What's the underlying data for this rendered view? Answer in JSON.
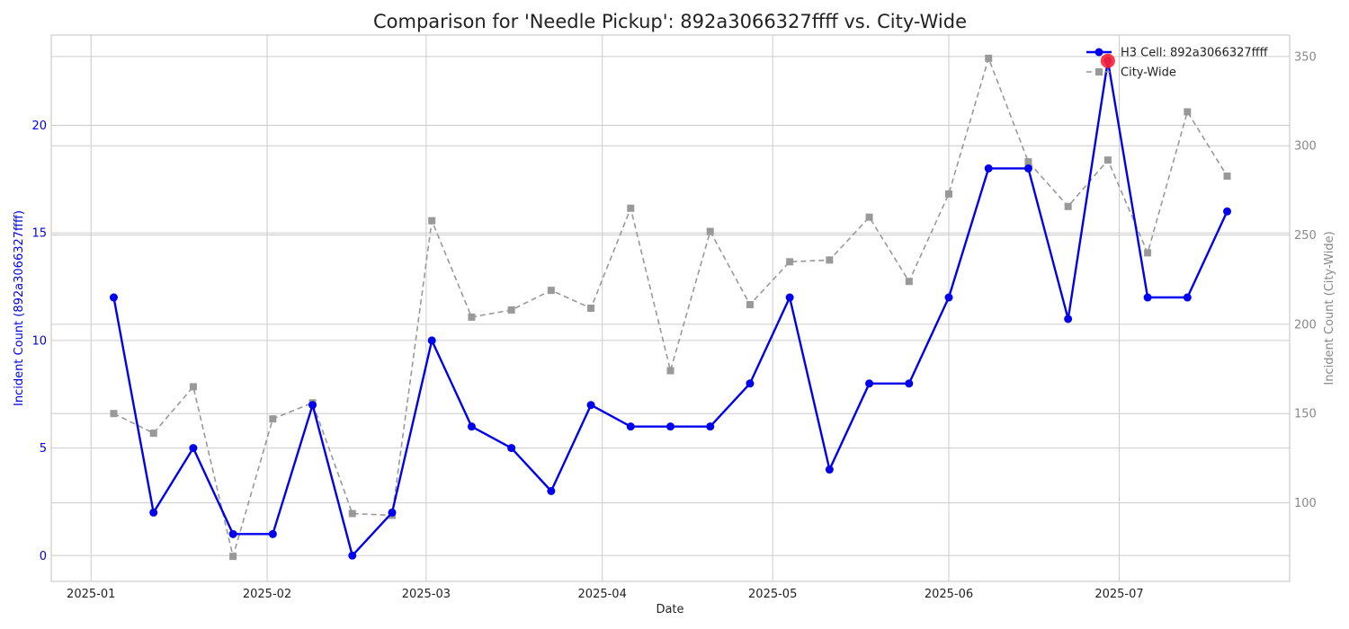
{
  "chart_data": {
    "type": "line",
    "title": "Comparison for 'Needle Pickup': 892a3066327ffff vs. City-Wide",
    "xlabel": "Date",
    "ylabel_left": "Incident Count (892a3066327ffff)",
    "ylabel_right": "Incident Count (City-Wide)",
    "x_ticks": [
      "2025-01",
      "2025-02",
      "2025-03",
      "2025-04",
      "2025-05",
      "2025-06",
      "2025-07"
    ],
    "x": [
      "2025-01-05",
      "2025-01-12",
      "2025-01-19",
      "2025-01-26",
      "2025-02-02",
      "2025-02-09",
      "2025-02-16",
      "2025-02-23",
      "2025-03-02",
      "2025-03-09",
      "2025-03-16",
      "2025-03-23",
      "2025-03-30",
      "2025-04-06",
      "2025-04-13",
      "2025-04-20",
      "2025-04-27",
      "2025-05-04",
      "2025-05-11",
      "2025-05-18",
      "2025-05-25",
      "2025-06-01",
      "2025-06-08",
      "2025-06-15",
      "2025-06-22",
      "2025-06-29",
      "2025-07-06",
      "2025-07-13",
      "2025-07-20"
    ],
    "xlim": [
      "2024-12-25",
      "2025-07-31"
    ],
    "y_left_ticks": [
      0,
      5,
      10,
      15,
      20
    ],
    "ylim_left": [
      -1.2,
      24.2
    ],
    "y_right_ticks": [
      100,
      150,
      200,
      250,
      300,
      350
    ],
    "ylim_right": [
      56,
      362
    ],
    "grid": true,
    "legend_placement": "top-right",
    "series": [
      {
        "name": "H3 Cell: 892a3066327ffff",
        "axis": "left",
        "color": "#0000ee",
        "style": "solid",
        "marker": "circle",
        "values": [
          12,
          2,
          5,
          1,
          1,
          7,
          0,
          2,
          10,
          6,
          5,
          3,
          7,
          6,
          6,
          6,
          8,
          12,
          4,
          8,
          8,
          12,
          18,
          18,
          11,
          23,
          12,
          12,
          16
        ]
      },
      {
        "name": "City-Wide",
        "axis": "right",
        "color": "#999999",
        "style": "dashed",
        "marker": "square",
        "values": [
          150,
          139,
          165,
          70,
          147,
          156,
          94,
          93,
          258,
          204,
          208,
          219,
          209,
          265,
          174,
          252,
          211,
          235,
          236,
          260,
          224,
          273,
          349,
          291,
          266,
          292,
          240,
          319,
          283
        ]
      }
    ],
    "highlight": {
      "series_index": 0,
      "point_index": 25,
      "color": "#ff2233"
    }
  }
}
